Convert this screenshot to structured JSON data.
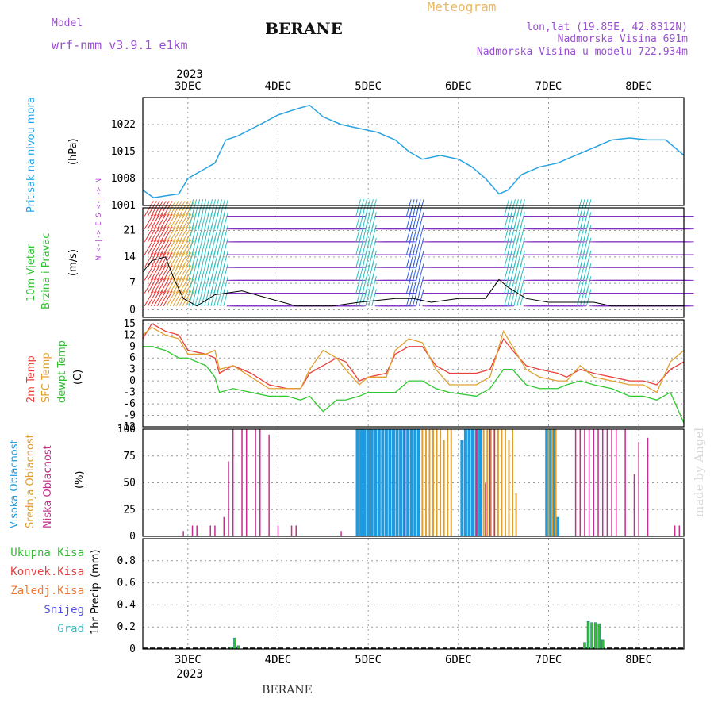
{
  "header": {
    "model_label": "Model",
    "model_name": "wrf-nmm_v3.9.1 e1km",
    "location": "BERANE",
    "product": "Meteogram",
    "coords": "lon,lat (19.85E, 42.8312N)",
    "elevation": "Nadmorska Visina 691m",
    "model_elevation": "Nadmorska Visina u modelu 722.934m",
    "footer_location": "BERANE",
    "credit": "made by Angel"
  },
  "colors": {
    "pressure": "#29a3e0",
    "t2m": "#e8403a",
    "sfc": "#e0a030",
    "dewpt": "#30c830",
    "high_cloud": "#1e9be0",
    "mid_cloud": "#e0a030",
    "low_cloud": "#c0308c",
    "precip_total": "#30c030",
    "precip_conv": "#e84040",
    "precip_frz": "#f07830",
    "precip_snow": "#5050e0",
    "precip_grad": "#30c0c0",
    "wind_speed": "#000000"
  },
  "x_axis": {
    "year": "2023",
    "days": [
      "3DEC",
      "4DEC",
      "5DEC",
      "6DEC",
      "7DEC",
      "8DEC"
    ]
  },
  "panel_labels": {
    "pressure": {
      "name": "Pritisak na nivou mora",
      "unit": "(hPa)"
    },
    "wind": {
      "name1": "10m Vjetar",
      "name2": "Brzina i Pravac",
      "unit": "(m/s)",
      "dirs": "W <-|-> E  S <-|-> N"
    },
    "temp": {
      "t2m": "2m Temp",
      "sfc": "SFC Temp",
      "dew": "dewpt Temp",
      "unit": "(C)"
    },
    "cloud": {
      "high": "Visoka Oblacnost",
      "mid": "Srednja Oblacnost",
      "low": "Niska Oblacnost",
      "unit": "(%)"
    },
    "precip": {
      "total": "Ukupna Kisa",
      "conv": "Konvek.Kisa",
      "frz": "Zaledj.Kisa",
      "snow": "Snijeg",
      "grad": "Grad",
      "name": "1hr Precip",
      "unit": "(mm)"
    }
  },
  "chart_data": [
    {
      "type": "line",
      "title": "Pritisak na nivou mora",
      "ylabel": "(hPa)",
      "ylim": [
        1001,
        1029
      ],
      "yticks": [
        1001,
        1008,
        1015,
        1022
      ],
      "x_unit": "days since 2 DEC 2023 00 UTC",
      "series": [
        {
          "name": "Pritisak na nivou mora",
          "x": [
            2.5,
            2.62,
            2.75,
            2.9,
            3.0,
            3.15,
            3.3,
            3.42,
            3.55,
            3.8,
            4.0,
            4.2,
            4.35,
            4.5,
            4.7,
            4.9,
            5.1,
            5.3,
            5.45,
            5.6,
            5.8,
            6.0,
            6.15,
            6.3,
            6.45,
            6.55,
            6.7,
            6.9,
            7.1,
            7.3,
            7.5,
            7.7,
            7.9,
            8.1,
            8.3,
            8.5
          ],
          "values": [
            1005,
            1003,
            1003.5,
            1004,
            1008,
            1010,
            1012,
            1018,
            1019,
            1022,
            1024.5,
            1026,
            1027,
            1024,
            1022,
            1021,
            1020,
            1018,
            1015,
            1013,
            1014,
            1013,
            1011,
            1008,
            1004,
            1005,
            1009,
            1011,
            1012,
            1014,
            1016,
            1018,
            1018.5,
            1018,
            1018,
            1014
          ]
        }
      ]
    },
    {
      "type": "line",
      "title": "10m Vjetar Brzina i Pravac",
      "ylabel": "(m/s)",
      "ylim": [
        -2,
        27
      ],
      "yticks": [
        0,
        7,
        14,
        21
      ],
      "series": [
        {
          "name": "10m Vjetar",
          "x": [
            2.5,
            2.6,
            2.75,
            2.85,
            2.95,
            3.1,
            3.3,
            3.6,
            3.9,
            4.2,
            4.6,
            4.9,
            5.3,
            5.5,
            5.7,
            6.0,
            6.3,
            6.45,
            6.55,
            6.75,
            7.0,
            7.3,
            7.5,
            7.7,
            8.0,
            8.3,
            8.5
          ],
          "values": [
            10,
            13,
            14,
            8,
            3,
            1,
            4,
            5,
            3,
            1,
            1,
            2,
            3,
            3,
            2,
            3,
            3,
            8,
            6,
            3,
            2,
            2,
            2,
            1,
            1,
            1,
            1
          ]
        }
      ]
    },
    {
      "type": "line",
      "title": "2m Temp / SFC Temp / dewpt Temp",
      "ylabel": "(C)",
      "ylim": [
        -12,
        16
      ],
      "yticks": [
        -12,
        -9,
        -6,
        -3,
        0,
        3,
        6,
        9,
        12,
        15
      ],
      "series": [
        {
          "name": "2m Temp",
          "x": [
            2.5,
            2.6,
            2.75,
            2.9,
            3.0,
            3.2,
            3.3,
            3.35,
            3.5,
            3.7,
            3.9,
            4.1,
            4.25,
            4.35,
            4.5,
            4.65,
            4.75,
            4.9,
            5.0,
            5.2,
            5.3,
            5.45,
            5.6,
            5.75,
            5.9,
            6.2,
            6.35,
            6.5,
            6.6,
            6.75,
            6.9,
            7.1,
            7.2,
            7.35,
            7.5,
            7.7,
            7.9,
            8.05,
            8.2,
            8.35,
            8.5
          ],
          "values": [
            11,
            15,
            13,
            12,
            8,
            7,
            6,
            2,
            4,
            2,
            -1,
            -2,
            -2,
            2,
            4,
            6,
            5,
            0,
            1,
            2,
            7,
            9,
            9,
            4,
            2,
            2,
            3,
            11,
            8,
            4,
            3,
            2,
            1,
            3,
            2,
            1,
            0,
            0,
            -1,
            3,
            5
          ]
        },
        {
          "name": "SFC Temp",
          "x": [
            2.5,
            2.6,
            2.75,
            2.9,
            3.0,
            3.2,
            3.3,
            3.35,
            3.5,
            3.7,
            3.9,
            4.1,
            4.25,
            4.35,
            4.5,
            4.65,
            4.75,
            4.9,
            5.0,
            5.2,
            5.3,
            5.45,
            5.6,
            5.75,
            5.9,
            6.2,
            6.35,
            6.5,
            6.6,
            6.75,
            6.9,
            7.1,
            7.2,
            7.35,
            7.5,
            7.7,
            7.9,
            8.05,
            8.2,
            8.35,
            8.5
          ],
          "values": [
            12,
            14,
            12,
            11,
            7,
            7,
            8,
            3,
            4,
            1,
            -2,
            -2,
            -2,
            3,
            8,
            6,
            3,
            -1,
            1,
            1,
            8,
            11,
            10,
            3,
            -1,
            -1,
            1,
            13,
            9,
            3,
            1,
            0,
            0,
            4,
            1,
            0,
            -1,
            -1,
            -3,
            5,
            8
          ]
        },
        {
          "name": "dewpt Temp",
          "x": [
            2.5,
            2.6,
            2.75,
            2.9,
            3.0,
            3.2,
            3.3,
            3.35,
            3.5,
            3.7,
            3.9,
            4.1,
            4.25,
            4.35,
            4.5,
            4.65,
            4.75,
            4.9,
            5.0,
            5.2,
            5.3,
            5.45,
            5.6,
            5.75,
            5.9,
            6.2,
            6.35,
            6.5,
            6.6,
            6.75,
            6.9,
            7.1,
            7.2,
            7.35,
            7.5,
            7.7,
            7.9,
            8.05,
            8.2,
            8.35,
            8.5
          ],
          "values": [
            9,
            9,
            8,
            6,
            6,
            4,
            1,
            -3,
            -2,
            -3,
            -4,
            -4,
            -5,
            -4,
            -8,
            -5,
            -5,
            -4,
            -3,
            -3,
            -3,
            0,
            0,
            -2,
            -3,
            -4,
            -2,
            3,
            3,
            -1,
            -2,
            -2,
            -1,
            0,
            -1,
            -2,
            -4,
            -4,
            -5,
            -3,
            -11
          ]
        }
      ]
    },
    {
      "type": "bar",
      "title": "Visoka / Srednja / Niska Oblacnost",
      "ylabel": "(%)",
      "ylim": [
        0,
        100
      ],
      "yticks": [
        0,
        25,
        50,
        75,
        100
      ],
      "series": [
        {
          "name": "Visoka Oblacnost",
          "x": [
            4.88,
            4.92,
            4.96,
            5.0,
            5.04,
            5.08,
            5.12,
            5.16,
            5.2,
            5.24,
            5.28,
            5.32,
            5.36,
            5.4,
            5.44,
            5.48,
            5.52,
            5.56,
            6.04,
            6.08,
            6.12,
            6.16,
            6.2,
            6.24,
            6.98,
            7.02,
            7.06,
            7.1
          ],
          "values": [
            100,
            100,
            100,
            100,
            100,
            100,
            100,
            100,
            100,
            100,
            100,
            100,
            100,
            100,
            100,
            100,
            100,
            100,
            90,
            100,
            100,
            100,
            100,
            100,
            100,
            100,
            100,
            18
          ]
        },
        {
          "name": "Srednja Oblacnost",
          "x": [
            5.6,
            5.64,
            5.68,
            5.72,
            5.76,
            5.8,
            5.84,
            5.88,
            5.92,
            6.28,
            6.32,
            6.36,
            6.4,
            6.44,
            6.48,
            6.52,
            6.56,
            6.6,
            6.64,
            7.0,
            7.04,
            7.08
          ],
          "values": [
            100,
            100,
            100,
            100,
            100,
            100,
            90,
            100,
            100,
            100,
            100,
            100,
            100,
            100,
            100,
            100,
            90,
            100,
            40,
            100,
            100,
            100
          ]
        },
        {
          "name": "Niska Oblacnost",
          "x": [
            2.95,
            3.05,
            3.1,
            3.25,
            3.3,
            3.4,
            3.45,
            3.5,
            3.6,
            3.65,
            3.75,
            3.8,
            3.9,
            4.0,
            4.15,
            4.2,
            4.7,
            5.4,
            6.2,
            6.3,
            6.35,
            6.4,
            7.3,
            7.35,
            7.4,
            7.45,
            7.5,
            7.55,
            7.6,
            7.65,
            7.7,
            7.75,
            7.85,
            7.95,
            8.0,
            8.1,
            8.4,
            8.45
          ],
          "values": [
            5,
            10,
            10,
            10,
            10,
            18,
            70,
            100,
            100,
            100,
            100,
            100,
            95,
            10,
            10,
            10,
            5,
            100,
            100,
            50,
            100,
            100,
            100,
            100,
            100,
            100,
            100,
            100,
            100,
            100,
            100,
            100,
            100,
            58,
            88,
            92,
            10,
            10
          ]
        }
      ]
    },
    {
      "type": "bar",
      "title": "1hr Precip",
      "ylabel": "(mm)",
      "ylim": [
        0,
        1
      ],
      "yticks": [
        0,
        0.2,
        0.4,
        0.6,
        0.8
      ],
      "series": [
        {
          "name": "Ukupna Kisa",
          "x": [
            3.48,
            3.52,
            3.56,
            7.4,
            7.44,
            7.48,
            7.52,
            7.56,
            7.6
          ],
          "values": [
            0.02,
            0.1,
            0.03,
            0.06,
            0.25,
            0.24,
            0.24,
            0.23,
            0.08
          ]
        },
        {
          "name": "Konvek.Kisa",
          "x": [],
          "values": []
        },
        {
          "name": "Zaledj.Kisa",
          "x": [],
          "values": []
        },
        {
          "name": "Snijeg",
          "x": [],
          "values": []
        },
        {
          "name": "Grad",
          "x": [],
          "values": []
        }
      ]
    }
  ]
}
